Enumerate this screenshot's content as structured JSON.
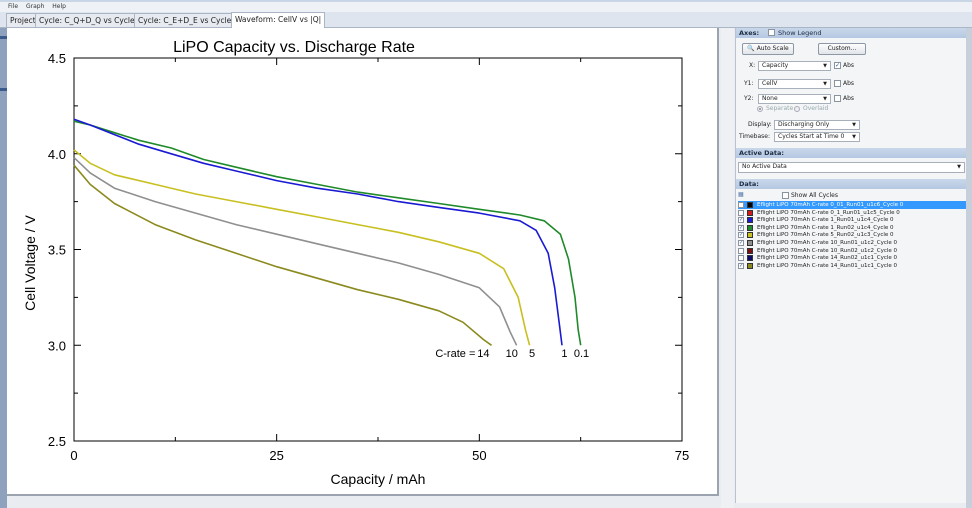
{
  "menu": [
    "File",
    "Graph",
    "Help"
  ],
  "tabs": [
    {
      "label": "Project",
      "active": false
    },
    {
      "label": "Cycle: C_Q+D_Q vs Cycle #",
      "active": false
    },
    {
      "label": "Cycle: C_E+D_E vs Cycle #",
      "active": false
    },
    {
      "label": "Waveform: CellV vs |Q|",
      "active": true
    }
  ],
  "chart_data": {
    "type": "line",
    "title": "LiPO Capacity vs. Discharge Rate",
    "xlabel": "Capacity / mAh",
    "ylabel": "Cell Voltage / V",
    "xlim": [
      0,
      75
    ],
    "ylim": [
      2.5,
      4.5
    ],
    "xticks": [
      0,
      25,
      50,
      75
    ],
    "yticks": [
      2.5,
      3.0,
      3.5,
      4.0,
      4.5
    ],
    "grid": false,
    "annotation": {
      "prefix": "C-rate = ",
      "labels": [
        {
          "text": "14",
          "x": 50.5,
          "y": 2.96
        },
        {
          "text": "10",
          "x": 54.0,
          "y": 2.96
        },
        {
          "text": "5",
          "x": 56.5,
          "y": 2.96
        },
        {
          "text": "1",
          "x": 60.5,
          "y": 2.96
        },
        {
          "text": "0.1",
          "x": 62.6,
          "y": 2.96
        }
      ]
    },
    "series": [
      {
        "color": "#1f8a2a",
        "x": [
          0,
          2,
          5,
          8,
          12,
          16,
          20,
          25,
          30,
          35,
          40,
          45,
          50,
          55,
          58,
          60,
          61,
          61.8,
          62.2,
          62.5
        ],
        "y": [
          4.17,
          4.15,
          4.11,
          4.07,
          4.03,
          3.97,
          3.93,
          3.88,
          3.84,
          3.8,
          3.77,
          3.74,
          3.71,
          3.68,
          3.65,
          3.58,
          3.45,
          3.25,
          3.08,
          3.0
        ]
      },
      {
        "color": "#1a1ad2",
        "x": [
          0,
          2,
          5,
          8,
          12,
          16,
          20,
          25,
          30,
          35,
          40,
          45,
          50,
          55,
          57,
          58.5,
          59.3,
          59.9,
          60.2
        ],
        "y": [
          4.18,
          4.15,
          4.1,
          4.05,
          4.0,
          3.95,
          3.91,
          3.86,
          3.82,
          3.79,
          3.75,
          3.72,
          3.69,
          3.65,
          3.6,
          3.48,
          3.3,
          3.1,
          3.0
        ]
      },
      {
        "color": "#c8c020",
        "x": [
          0,
          2,
          5,
          10,
          15,
          20,
          25,
          30,
          35,
          40,
          45,
          50,
          53,
          54.8,
          55.7,
          56.2
        ],
        "y": [
          4.02,
          3.95,
          3.89,
          3.84,
          3.79,
          3.75,
          3.71,
          3.67,
          3.63,
          3.59,
          3.54,
          3.48,
          3.4,
          3.25,
          3.08,
          3.0
        ]
      },
      {
        "color": "#8f8f8f",
        "x": [
          0,
          2,
          5,
          10,
          15,
          20,
          25,
          30,
          35,
          40,
          45,
          50,
          52.5,
          53.8,
          54.6
        ],
        "y": [
          3.98,
          3.9,
          3.82,
          3.75,
          3.69,
          3.63,
          3.58,
          3.53,
          3.48,
          3.43,
          3.37,
          3.3,
          3.2,
          3.07,
          3.0
        ]
      },
      {
        "color": "#8b8a1e",
        "x": [
          0,
          2,
          5,
          10,
          15,
          20,
          25,
          30,
          35,
          40,
          45,
          48,
          50.5,
          51.5
        ],
        "y": [
          3.94,
          3.84,
          3.74,
          3.63,
          3.55,
          3.48,
          3.41,
          3.35,
          3.29,
          3.24,
          3.18,
          3.12,
          3.03,
          3.0
        ]
      }
    ]
  },
  "side": {
    "axes_header": "Axes:",
    "show_legend": "Show Legend",
    "auto_scale": "Auto Scale",
    "custom": "Custom...",
    "x_label": "X:",
    "x_value": "Capacity",
    "y1_label": "Y1:",
    "y1_value": "CellV",
    "y2_label": "Y2:",
    "y2_value": "None",
    "abs": "Abs",
    "separate": "Separate",
    "overlaid": "Overlaid",
    "display_label": "Display:",
    "display_value": "Discharging Only",
    "timebase_label": "Timebase:",
    "timebase_value": "Cycles Start at Time 0",
    "active_header": "Active Data:",
    "active_value": "No Active Data",
    "data_header": "Data:",
    "show_all": "Show All Cycles",
    "data_rows": [
      {
        "label": "Eflight LiPO 70mAh C-rate 0_01_Run01_u1c6_Cycle 0",
        "color": "#000000",
        "checked": false,
        "selected": true
      },
      {
        "label": "Eflight LiPO 70mAh C-rate 0_1_Run01_u1c5_Cycle 0",
        "color": "#d11a1a",
        "checked": false,
        "selected": false
      },
      {
        "label": "Eflight LiPO 70mAh C-rate 1_Run01_u1c4_Cycle 0",
        "color": "#1a1ad2",
        "checked": true,
        "selected": false
      },
      {
        "label": "Eflight LiPO 70mAh C-rate 1_Run02_u1c4_Cycle 0",
        "color": "#1f8a2a",
        "checked": true,
        "selected": false
      },
      {
        "label": "Eflight LiPO 70mAh C-rate 5_Run02_u1c3_Cycle 0",
        "color": "#c8c020",
        "checked": true,
        "selected": false
      },
      {
        "label": "Eflight LiPO 70mAh C-rate 10_Run01_u1c2_Cycle 0",
        "color": "#8f8f8f",
        "checked": true,
        "selected": false
      },
      {
        "label": "Eflight LiPO 70mAh C-rate 10_Run02_u1c2_Cycle 0",
        "color": "#7a1010",
        "checked": false,
        "selected": false
      },
      {
        "label": "Eflight LiPO 70mAh C-rate 14_Run02_u1c1_Cycle 0",
        "color": "#0a0a6a",
        "checked": false,
        "selected": false
      },
      {
        "label": "Eflight LiPO 70mAh C-rate 14_Run01_u1c1_Cycle 0",
        "color": "#8b8a1e",
        "checked": true,
        "selected": false
      }
    ]
  }
}
